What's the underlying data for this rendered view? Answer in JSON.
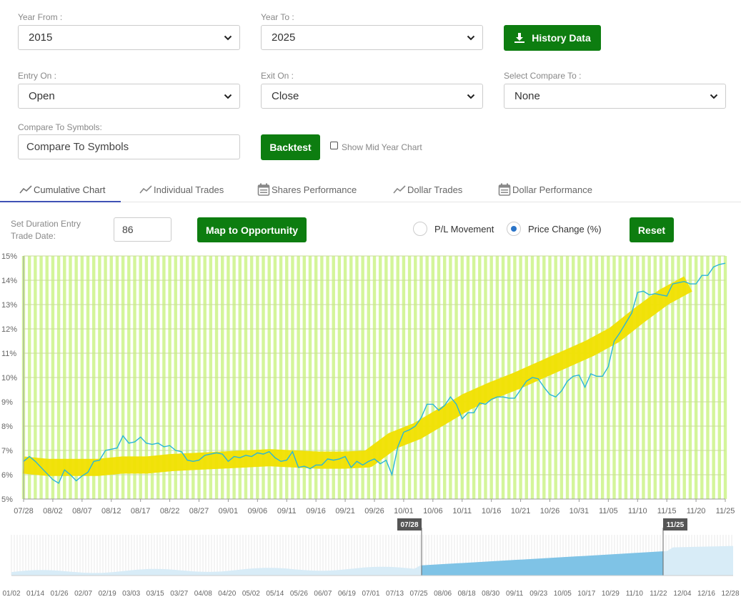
{
  "filters": {
    "year_from": {
      "label": "Year From :",
      "value": "2015"
    },
    "year_to": {
      "label": "Year To :",
      "value": "2025"
    },
    "history_button": "History Data",
    "entry_on": {
      "label": "Entry On :",
      "value": "Open"
    },
    "exit_on": {
      "label": "Exit On :",
      "value": "Close"
    },
    "compare_to": {
      "label": "Select Compare To :",
      "value": "None"
    },
    "compare_symbols": {
      "label": "Compare To Symbols:",
      "placeholder": "Compare To Symbols"
    },
    "backtest_button": "Backtest",
    "mid_year_label": "Show Mid Year Chart"
  },
  "tabs": [
    {
      "label": "Cumulative Chart",
      "icon": "line-chart-icon",
      "active": true
    },
    {
      "label": "Individual Trades",
      "icon": "line-chart-icon",
      "active": false
    },
    {
      "label": "Shares Performance",
      "icon": "calendar-icon",
      "active": false
    },
    {
      "label": "Dollar Trades",
      "icon": "line-chart-icon",
      "active": false
    },
    {
      "label": "Dollar Performance",
      "icon": "calendar-icon",
      "active": false
    }
  ],
  "controls": {
    "duration_label_1": "Set Duration Entry",
    "duration_label_2": "Trade Date:",
    "duration_value": "86",
    "map_button": "Map to Opportunity",
    "pl_movement": "P/L Movement",
    "price_change": "Price Change (%)",
    "selected_mode": "price_change",
    "reset_button": "Reset"
  },
  "colors": {
    "accent_green": "#0d7d10",
    "bar_green": "#d4f59a",
    "band_yellow": "#f1e000",
    "line_cyan": "#29b6d8",
    "nav_blue": "#7fc3e6",
    "tab_indicator": "#3f51b5"
  },
  "chart_data": {
    "type": "line",
    "ylim": [
      5,
      15
    ],
    "y_ticks": [
      "5%",
      "6%",
      "7%",
      "8%",
      "9%",
      "10%",
      "11%",
      "12%",
      "13%",
      "14%",
      "15%"
    ],
    "x_ticks": [
      "07/28",
      "08/02",
      "08/07",
      "08/12",
      "08/17",
      "08/22",
      "08/27",
      "09/01",
      "09/06",
      "09/11",
      "09/16",
      "09/21",
      "09/26",
      "10/01",
      "10/06",
      "10/11",
      "10/16",
      "10/21",
      "10/26",
      "10/31",
      "11/05",
      "11/10",
      "11/15",
      "11/20",
      "11/25"
    ],
    "series": [
      {
        "values": [
          6.55,
          6.75,
          6.55,
          6.3,
          6.05,
          5.8,
          5.65,
          6.2,
          6.0,
          5.75,
          5.95,
          6.1,
          6.55,
          6.6,
          7.0,
          7.05,
          7.1,
          7.6,
          7.3,
          7.35,
          7.55,
          7.3,
          7.25,
          7.3,
          7.15,
          7.2,
          7.0,
          6.95,
          6.6,
          6.55,
          6.6,
          6.8,
          6.85,
          6.9,
          6.85,
          6.55,
          6.75,
          6.7,
          6.8,
          6.75,
          6.9,
          6.85,
          6.95,
          6.7,
          6.55,
          6.6,
          6.95,
          6.3,
          6.35,
          6.25,
          6.4,
          6.4,
          6.65,
          6.6,
          6.65,
          6.75,
          6.3,
          6.55,
          6.4,
          6.55,
          6.65,
          6.45,
          6.6,
          6.0,
          7.15,
          7.75,
          7.85,
          8.0,
          8.35,
          8.9,
          8.9,
          8.65,
          8.85,
          9.2,
          8.9,
          8.3,
          8.55,
          8.55,
          8.95,
          8.9,
          9.1,
          9.2,
          9.2,
          9.15,
          9.15,
          9.5,
          9.85,
          10.0,
          9.95,
          9.6,
          9.3,
          9.2,
          9.45,
          9.85,
          10.05,
          10.1,
          9.6,
          10.15,
          10.05,
          10.05,
          10.45,
          11.5,
          11.85,
          12.25,
          12.65,
          13.5,
          13.55,
          13.4,
          13.45,
          13.4,
          13.35,
          13.85,
          13.9,
          13.95,
          13.85,
          13.85,
          14.2,
          14.2,
          14.55,
          14.65,
          14.7
        ]
      }
    ],
    "band_center": [
      6.4,
      6.3,
      6.3,
      6.3,
      6.4,
      6.4,
      6.5,
      6.55,
      6.6,
      6.65,
      6.7,
      6.65,
      6.6,
      6.6,
      6.65,
      7.4,
      7.8,
      8.4,
      9.0,
      9.45,
      9.85,
      10.3,
      10.75,
      11.2,
      11.75,
      12.55,
      13.3,
      13.85
    ],
    "band_dates": [
      "07/28",
      "08/02",
      "08/07",
      "08/12",
      "08/17",
      "08/22",
      "08/27",
      "09/01",
      "09/06",
      "09/11",
      "09/16",
      "09/21",
      "09/26",
      "09/30",
      "10/01",
      "10/03",
      "10/06",
      "10/11",
      "10/16",
      "10/21",
      "10/26",
      "10/31",
      "11/05",
      "11/10",
      "11/15",
      "11/20",
      "11/25",
      "11/29"
    ]
  },
  "navigator": {
    "start_label": "07/28",
    "end_label": "11/25",
    "x_ticks": [
      "01/02",
      "01/14",
      "01/26",
      "02/07",
      "02/19",
      "03/03",
      "03/15",
      "03/27",
      "04/08",
      "04/20",
      "05/02",
      "05/14",
      "05/26",
      "06/07",
      "06/19",
      "07/01",
      "07/13",
      "07/25",
      "08/06",
      "08/18",
      "08/30",
      "09/11",
      "09/23",
      "10/05",
      "10/17",
      "10/29",
      "11/10",
      "11/22",
      "12/04",
      "12/16",
      "12/28"
    ]
  }
}
